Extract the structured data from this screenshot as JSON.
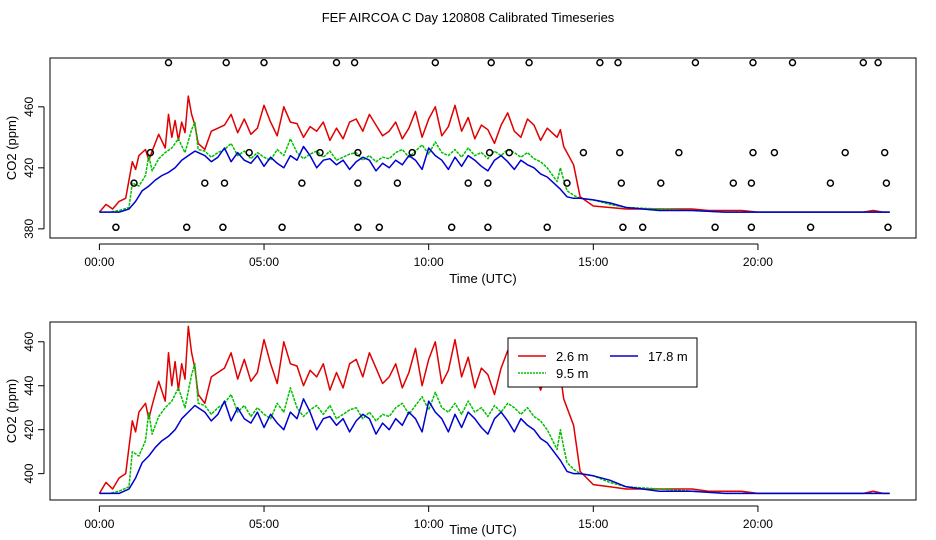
{
  "title": "FEF AIRCOA C  Day 120808  Calibrated Timeseries",
  "colors": {
    "2.6 m": "#e00000",
    "9.5 m": "#00c000",
    "17.8 m": "#0000d0",
    "markers": "#000000"
  },
  "chart_data": [
    {
      "type": "line",
      "panel": "top",
      "xlabel": "Time (UTC)",
      "ylabel": "CO2 (ppm)",
      "xlim": [
        -1.5,
        24.8
      ],
      "ylim": [
        374,
        492
      ],
      "xticks": [
        0,
        5,
        10,
        15,
        20
      ],
      "xtick_labels": [
        "00:00",
        "05:00",
        "10:00",
        "15:00",
        "20:00"
      ],
      "yticks": [
        380,
        420,
        460
      ],
      "ytick_labels": [
        "380",
        "420",
        "460"
      ],
      "series": [
        {
          "name": "2.6 m",
          "color": "#e00000",
          "x": [
            0,
            0.2,
            0.4,
            0.6,
            0.8,
            1.0,
            1.1,
            1.2,
            1.4,
            1.5,
            1.6,
            1.8,
            2.0,
            2.1,
            2.2,
            2.3,
            2.4,
            2.5,
            2.6,
            2.7,
            2.8,
            2.9,
            3.0,
            3.2,
            3.4,
            3.6,
            3.8,
            4.0,
            4.2,
            4.4,
            4.6,
            4.8,
            5.0,
            5.2,
            5.4,
            5.6,
            5.8,
            6.0,
            6.2,
            6.4,
            6.6,
            6.8,
            7.0,
            7.2,
            7.4,
            7.6,
            7.8,
            8.0,
            8.2,
            8.4,
            8.6,
            8.8,
            9.0,
            9.2,
            9.4,
            9.6,
            9.8,
            10.0,
            10.2,
            10.4,
            10.6,
            10.8,
            11.0,
            11.2,
            11.4,
            11.6,
            11.8,
            12.0,
            12.2,
            12.4,
            12.6,
            12.8,
            13.0,
            13.2,
            13.4,
            13.6,
            13.8,
            13.9,
            14.0,
            14.1,
            14.2,
            14.4,
            14.6,
            15,
            15.5,
            16,
            16.5,
            17,
            17.5,
            18,
            18.5,
            19,
            19.5,
            20,
            20.5,
            21,
            21.5,
            22,
            22.5,
            23,
            23.2,
            23.5,
            23.8,
            24
          ],
          "y": [
            391,
            396,
            393,
            398,
            400,
            424,
            419,
            428,
            432,
            425,
            431,
            442,
            433,
            455,
            440,
            451,
            438,
            450,
            443,
            467,
            455,
            448,
            436,
            432,
            444,
            446,
            448,
            455,
            443,
            452,
            442,
            446,
            461,
            450,
            441,
            460,
            450,
            449,
            440,
            447,
            444,
            450,
            438,
            446,
            439,
            450,
            452,
            444,
            455,
            448,
            441,
            444,
            450,
            439,
            446,
            457,
            440,
            452,
            460,
            441,
            447,
            461,
            444,
            453,
            439,
            448,
            445,
            436,
            448,
            456,
            444,
            440,
            452,
            448,
            438,
            446,
            442,
            440,
            445,
            434,
            430,
            422,
            401,
            395,
            394,
            393,
            393,
            393,
            393,
            393,
            392,
            392,
            392,
            391,
            391,
            391,
            391,
            391,
            391,
            391,
            391,
            392,
            391,
            391
          ]
        },
        {
          "name": "9.5 m",
          "color": "#00c000",
          "x": [
            0,
            0.3,
            0.6,
            0.9,
            1.0,
            1.2,
            1.4,
            1.5,
            1.6,
            1.8,
            2.0,
            2.2,
            2.4,
            2.6,
            2.8,
            2.9,
            3.0,
            3.2,
            3.4,
            3.6,
            3.8,
            4.0,
            4.2,
            4.4,
            4.6,
            4.8,
            5.0,
            5.2,
            5.4,
            5.6,
            5.8,
            6.0,
            6.2,
            6.4,
            6.6,
            6.8,
            7.0,
            7.2,
            7.4,
            7.6,
            7.8,
            8.0,
            8.2,
            8.4,
            8.6,
            8.8,
            9.0,
            9.2,
            9.4,
            9.6,
            9.8,
            10.0,
            10.2,
            10.4,
            10.6,
            10.8,
            11.0,
            11.2,
            11.4,
            11.6,
            11.8,
            12.0,
            12.2,
            12.4,
            12.6,
            12.8,
            13.0,
            13.2,
            13.4,
            13.6,
            13.8,
            13.9,
            14.0,
            14.1,
            14.2,
            14.4,
            14.6,
            15,
            15.5,
            16,
            17,
            18,
            19,
            20,
            21,
            22,
            23,
            24
          ],
          "y": [
            391,
            391,
            392,
            394,
            410,
            408,
            415,
            428,
            418,
            426,
            430,
            433,
            439,
            430,
            445,
            450,
            432,
            431,
            427,
            430,
            432,
            436,
            428,
            431,
            426,
            430,
            427,
            425,
            432,
            428,
            439,
            430,
            426,
            429,
            431,
            427,
            431,
            425,
            427,
            429,
            430,
            425,
            428,
            424,
            427,
            426,
            430,
            432,
            427,
            431,
            435,
            429,
            437,
            430,
            428,
            432,
            427,
            433,
            428,
            430,
            426,
            431,
            428,
            432,
            430,
            427,
            430,
            426,
            424,
            420,
            414,
            411,
            420,
            412,
            405,
            402,
            400,
            399,
            396,
            394,
            393,
            392,
            391,
            391,
            391,
            391,
            391,
            391
          ]
        },
        {
          "name": "17.8 m",
          "color": "#0000d0",
          "x": [
            0,
            0.3,
            0.6,
            0.9,
            1.1,
            1.3,
            1.5,
            1.7,
            1.9,
            2.1,
            2.3,
            2.5,
            2.7,
            2.9,
            3.0,
            3.2,
            3.4,
            3.6,
            3.8,
            4.0,
            4.2,
            4.4,
            4.6,
            4.8,
            5.0,
            5.2,
            5.4,
            5.6,
            5.8,
            6.0,
            6.2,
            6.4,
            6.6,
            6.8,
            7.0,
            7.2,
            7.4,
            7.6,
            7.8,
            8.0,
            8.2,
            8.4,
            8.6,
            8.8,
            9.0,
            9.2,
            9.4,
            9.6,
            9.8,
            10.0,
            10.2,
            10.4,
            10.6,
            10.8,
            11.0,
            11.2,
            11.4,
            11.6,
            11.8,
            12.0,
            12.2,
            12.4,
            12.6,
            12.8,
            13.0,
            13.2,
            13.4,
            13.6,
            13.8,
            14.0,
            14.2,
            14.4,
            14.6,
            15,
            15.5,
            16,
            16.5,
            17,
            18,
            19,
            20,
            21,
            22,
            23,
            24
          ],
          "y": [
            391,
            391,
            391,
            393,
            398,
            405,
            408,
            412,
            415,
            417,
            420,
            425,
            428,
            431,
            430,
            428,
            424,
            427,
            433,
            424,
            430,
            425,
            423,
            428,
            421,
            427,
            423,
            420,
            428,
            425,
            434,
            428,
            420,
            425,
            426,
            422,
            425,
            419,
            424,
            427,
            425,
            418,
            423,
            420,
            425,
            422,
            428,
            425,
            419,
            433,
            428,
            425,
            419,
            427,
            421,
            428,
            425,
            421,
            418,
            425,
            428,
            424,
            419,
            425,
            422,
            420,
            416,
            414,
            410,
            406,
            401,
            400,
            400,
            399,
            397,
            394,
            393,
            392,
            392,
            391,
            391,
            391,
            391,
            391,
            391
          ]
        }
      ],
      "markers": {
        "symbol": "o",
        "x": [
          2.1,
          3.85,
          5.0,
          7.2,
          7.75,
          10.2,
          11.9,
          13.05,
          15.2,
          15.75,
          18.1,
          19.85,
          21.05,
          23.2,
          23.65,
          1.55,
          4.55,
          6.7,
          7.85,
          9.5,
          11.85,
          12.45,
          14.7,
          15.8,
          17.6,
          19.85,
          20.5,
          22.65,
          23.85,
          1.05,
          3.2,
          3.8,
          6.15,
          7.85,
          9.05,
          11.2,
          11.8,
          14.2,
          15.85,
          17.05,
          19.25,
          19.8,
          22.2,
          23.9,
          0.5,
          2.65,
          3.75,
          5.55,
          7.85,
          8.5,
          10.7,
          11.8,
          13.6,
          15.9,
          16.5,
          18.7,
          19.8,
          21.6,
          23.95
        ],
        "y": [
          489,
          489,
          489,
          489,
          489,
          489,
          489,
          489,
          489,
          489,
          489,
          489,
          489,
          489,
          489,
          430,
          430,
          430,
          430,
          430,
          430,
          430,
          430,
          430,
          430,
          430,
          430,
          430,
          430,
          410,
          410,
          410,
          410,
          410,
          410,
          410,
          410,
          410,
          410,
          410,
          410,
          410,
          410,
          410,
          381,
          381,
          381,
          381,
          381,
          381,
          381,
          381,
          381,
          381,
          381,
          381,
          381,
          381,
          381
        ]
      }
    },
    {
      "type": "line",
      "panel": "bottom",
      "xlabel": "Time (UTC)",
      "ylabel": "CO2 (ppm)",
      "xlim": [
        -1.5,
        24.8
      ],
      "ylim": [
        388,
        469
      ],
      "xticks": [
        0,
        5,
        10,
        15,
        20
      ],
      "xtick_labels": [
        "00:00",
        "05:00",
        "10:00",
        "15:00",
        "20:00"
      ],
      "yticks": [
        400,
        420,
        440,
        460
      ],
      "ytick_labels": [
        "400",
        "420",
        "440",
        "460"
      ],
      "legend": {
        "placement": "top-right",
        "entries": [
          "2.6 m",
          "9.5 m",
          "17.8 m"
        ]
      },
      "series_ref": [
        "2.6 m",
        "9.5 m",
        "17.8 m"
      ]
    }
  ]
}
